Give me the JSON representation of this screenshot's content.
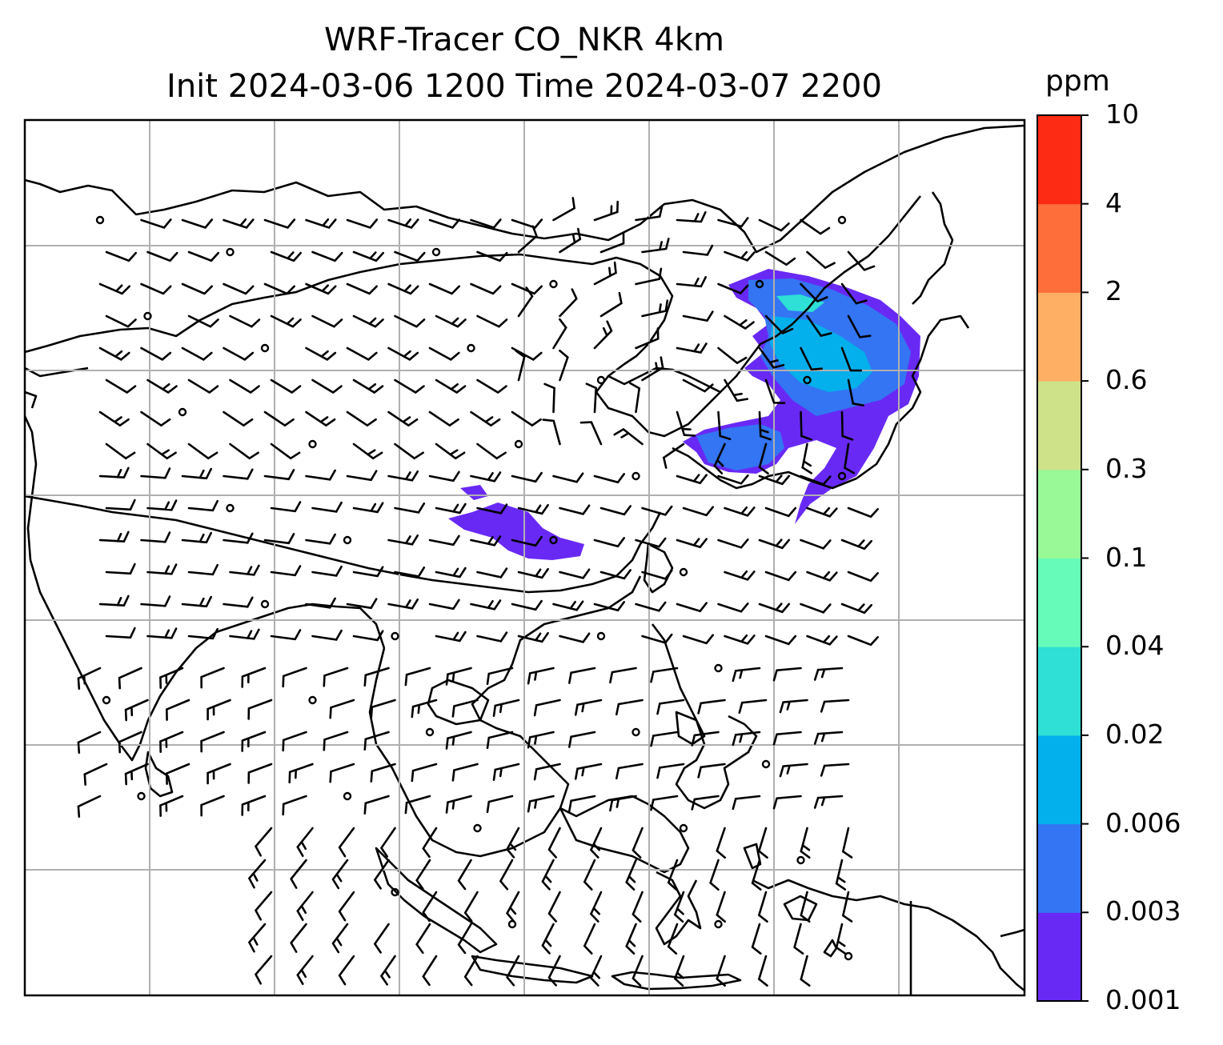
{
  "title": {
    "line1": "WRF-Tracer CO_NKR 4km",
    "line2": "Init 2024-03-06 1200 Time 2024-03-07 2200"
  },
  "colorbar": {
    "unit": "ppm",
    "levels": [
      "0.001",
      "0.003",
      "0.006",
      "0.02",
      "0.04",
      "0.1",
      "0.3",
      "0.6",
      "2",
      "4",
      "10"
    ],
    "colors": [
      "#6929f5",
      "#3375f3",
      "#03b0ec",
      "#2ee0d5",
      "#66fbb8",
      "#98f996",
      "#cee28a",
      "#feaf63",
      "#fe6e3b",
      "#fd2a14"
    ]
  },
  "map": {
    "frame_color": "#000000",
    "grid_color": "#b0b0b0",
    "coastline_color": "#000000",
    "barb_color": "#000000"
  }
}
